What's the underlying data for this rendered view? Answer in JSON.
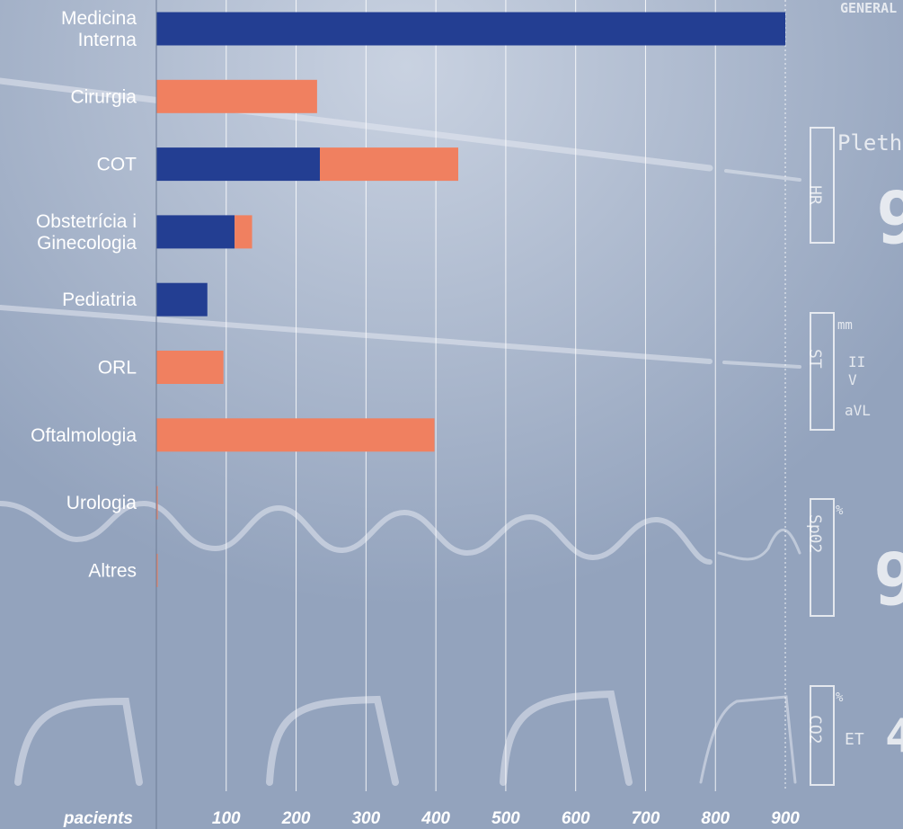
{
  "background": {
    "colors": {
      "base": "#93a3bd",
      "light": "#c4cede",
      "trace": "#e3e8f0"
    },
    "monitor_texts": [
      "GENERAL",
      "Pleth",
      "HR",
      "9",
      "ST",
      "mm",
      "II",
      "V",
      "aVL",
      "Sp02",
      "%",
      "9",
      "CO2",
      "%",
      "ET",
      "4"
    ]
  },
  "chart_data": {
    "type": "bar",
    "orientation": "horizontal",
    "stacked": true,
    "categories": [
      [
        "Medicina",
        "Interna"
      ],
      [
        "Cirurgia"
      ],
      [
        "COT"
      ],
      [
        "Obstetrícia i",
        "Ginecologia"
      ],
      [
        "Pediatria"
      ],
      [
        "ORL"
      ],
      [
        "Oftalmologia"
      ],
      [
        "Urologia"
      ],
      [
        "Altres"
      ]
    ],
    "series": [
      {
        "color": "#233e92",
        "values": [
          900,
          0,
          234,
          112,
          73,
          0,
          0,
          0,
          0
        ]
      },
      {
        "color": "#f08060",
        "values": [
          0,
          230,
          198,
          25,
          0,
          96,
          398,
          2,
          2
        ]
      }
    ],
    "xlabel": "pacients",
    "xticks": [
      100,
      200,
      300,
      400,
      500,
      600,
      700,
      800,
      900
    ],
    "xlim": [
      0,
      900
    ],
    "grid": true
  }
}
